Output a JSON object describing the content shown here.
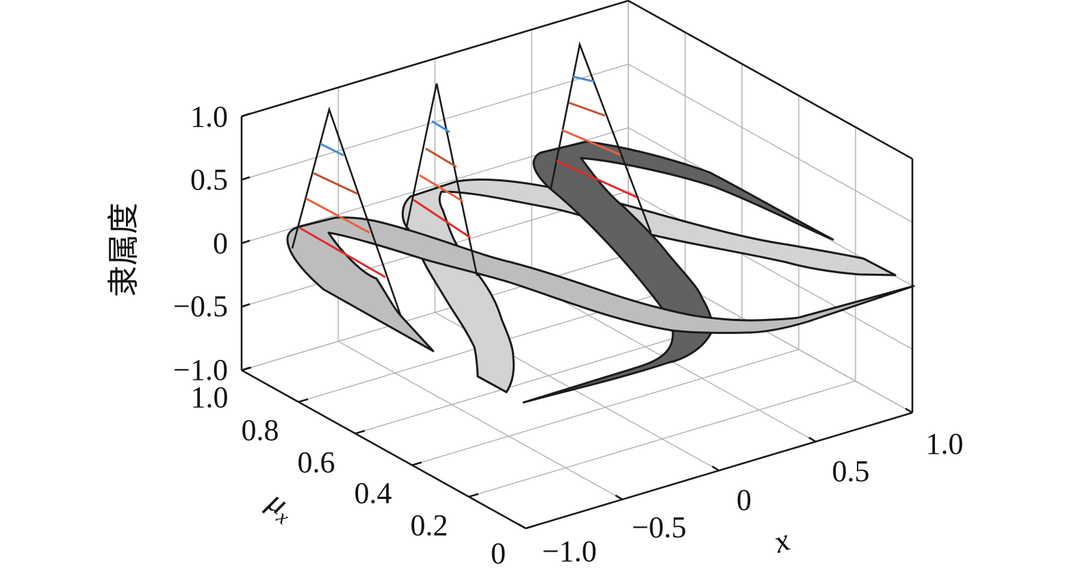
{
  "chart_data": {
    "type": "3d-ribbon",
    "title": "",
    "xlabel": "x",
    "ylabel": "μx",
    "ylabel_main": "μ",
    "ylabel_sub": "x",
    "zlabel": "隶属度",
    "xlim": [
      -1.0,
      1.0
    ],
    "ylim": [
      0,
      1.0
    ],
    "zlim": [
      -1.0,
      1.0
    ],
    "x_ticks": [
      -1.0,
      -0.5,
      0,
      0.5,
      1.0
    ],
    "x_tick_labels": [
      "−1.0",
      "−0.5",
      "0",
      "0.5",
      "1.0"
    ],
    "y_ticks": [
      0,
      0.2,
      0.4,
      0.6,
      0.8,
      1.0
    ],
    "y_tick_labels": [
      "0",
      "0.2",
      "0.4",
      "0.6",
      "0.8",
      "1.0"
    ],
    "z_ticks": [
      -1.0,
      -0.5,
      0,
      0.5,
      1.0
    ],
    "z_tick_labels": [
      "−1.0",
      "−0.5",
      "0",
      "0.5",
      "1.0"
    ],
    "grid": true,
    "ribbon_colors": [
      "#d3d3d3",
      "#616161",
      "#bdbdbd"
    ],
    "hatch_colors": [
      "#4a8ad0",
      "#c0522a",
      "#e8603a",
      "#e02a2a"
    ],
    "line_color": "#1a1a1a",
    "grid_color": "#b4b4b4"
  }
}
